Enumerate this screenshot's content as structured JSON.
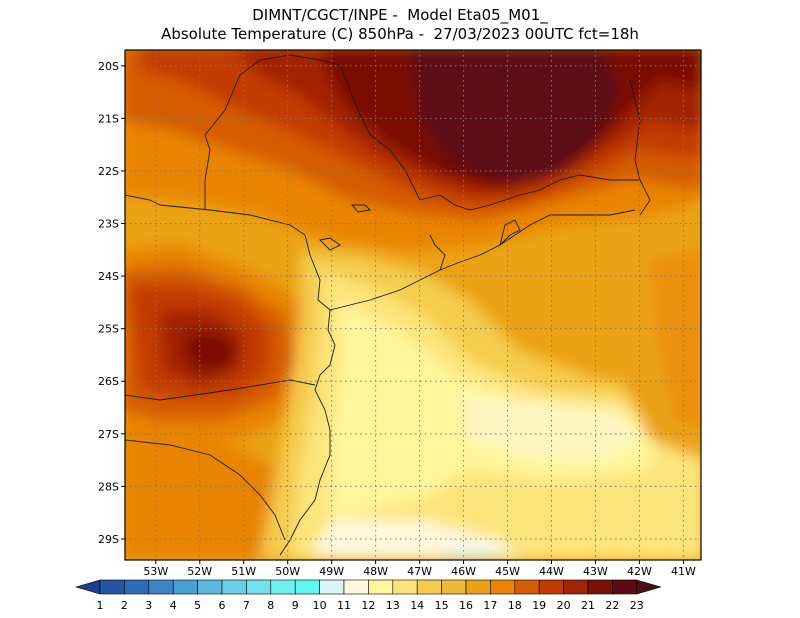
{
  "header": {
    "line1": "DIMNT/CGCT/INPE -  Model Eta05_M01_",
    "line2": "Absolute Temperature (C) 850hPa -  27/03/2023 00UTC fct=18h"
  },
  "map": {
    "lat_labels": [
      "20S",
      "21S",
      "22S",
      "23S",
      "24S",
      "25S",
      "26S",
      "27S",
      "28S",
      "29S"
    ],
    "lon_labels": [
      "53W",
      "52W",
      "51W",
      "50W",
      "49W",
      "48W",
      "47W",
      "46W",
      "45W",
      "44W",
      "43W",
      "42W",
      "41W"
    ],
    "lat_range": [
      -29.4,
      -19.7
    ],
    "lon_range": [
      -53.7,
      -40.6
    ]
  },
  "colorbar": {
    "values": [
      "1",
      "2",
      "3",
      "4",
      "5",
      "6",
      "7",
      "8",
      "9",
      "10",
      "11",
      "12",
      "13",
      "14",
      "15",
      "16",
      "17",
      "18",
      "19",
      "20",
      "21",
      "22",
      "23"
    ],
    "colors": [
      "#1f3d8c",
      "#2456a6",
      "#2a6db8",
      "#3a86c8",
      "#4aa0d6",
      "#5cb8e2",
      "#68cfe9",
      "#6fe2ec",
      "#6ff2ef",
      "#5ff8f2",
      "#d9f3f7",
      "#fff8dd",
      "#fff59a",
      "#fde47a",
      "#f5cc4e",
      "#f0b83a",
      "#eba214",
      "#e98406",
      "#d65b06",
      "#c23a04",
      "#a22406",
      "#7a1106",
      "#5c0a14",
      "#4a0f17"
    ]
  }
}
